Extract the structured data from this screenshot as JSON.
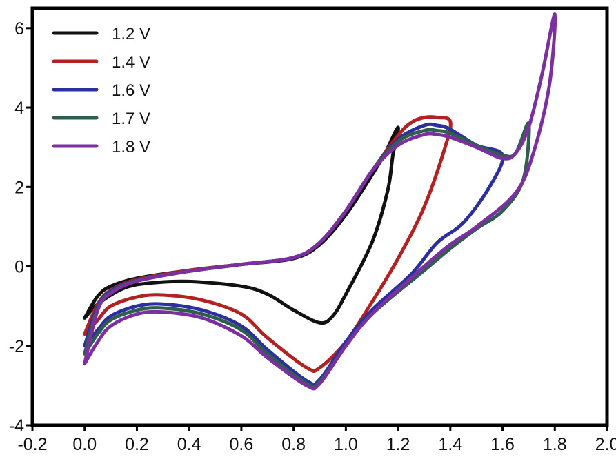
{
  "chart_data": {
    "type": "line",
    "title": "",
    "xlabel": "",
    "ylabel": "",
    "xlim": [
      -0.2,
      2.0
    ],
    "ylim": [
      -4,
      6.5
    ],
    "xticks": [
      -0.2,
      0.0,
      0.2,
      0.4,
      0.6,
      0.8,
      1.0,
      1.2,
      1.4,
      1.6,
      1.8,
      2.0
    ],
    "xtick_labels": [
      "-0.2",
      "0.0",
      "0.2",
      "0.4",
      "0.6",
      "0.8",
      "1.0",
      "1.2",
      "1.4",
      "1.6",
      "1.8",
      "2.0"
    ],
    "yticks": [
      -4,
      -2,
      0,
      2,
      4,
      6
    ],
    "ytick_labels": [
      "-4",
      "-2",
      "0",
      "2",
      "4",
      "6"
    ],
    "grid": false,
    "legend_position": "top-left",
    "series": [
      {
        "name": "1.2 V",
        "color": "#111111",
        "points": [
          [
            0.0,
            -1.3
          ],
          [
            0.05,
            -0.75
          ],
          [
            0.1,
            -0.5
          ],
          [
            0.2,
            -0.3
          ],
          [
            0.4,
            -0.1
          ],
          [
            0.6,
            0.05
          ],
          [
            0.8,
            0.2
          ],
          [
            0.9,
            0.55
          ],
          [
            1.0,
            1.3
          ],
          [
            1.1,
            2.3
          ],
          [
            1.15,
            2.85
          ],
          [
            1.2,
            3.5
          ],
          [
            1.18,
            2.8
          ],
          [
            1.16,
            1.9
          ],
          [
            1.1,
            0.6
          ],
          [
            1.0,
            -0.7
          ],
          [
            0.95,
            -1.25
          ],
          [
            0.9,
            -1.42
          ],
          [
            0.8,
            -1.1
          ],
          [
            0.7,
            -0.7
          ],
          [
            0.6,
            -0.5
          ],
          [
            0.4,
            -0.38
          ],
          [
            0.25,
            -0.42
          ],
          [
            0.15,
            -0.55
          ],
          [
            0.05,
            -0.95
          ],
          [
            0.0,
            -1.3
          ]
        ]
      },
      {
        "name": "1.4 V",
        "color": "#b22222",
        "points": [
          [
            0.0,
            -1.7
          ],
          [
            0.05,
            -0.95
          ],
          [
            0.1,
            -0.6
          ],
          [
            0.2,
            -0.33
          ],
          [
            0.4,
            -0.1
          ],
          [
            0.6,
            0.05
          ],
          [
            0.8,
            0.22
          ],
          [
            0.9,
            0.6
          ],
          [
            1.0,
            1.4
          ],
          [
            1.1,
            2.4
          ],
          [
            1.2,
            3.3
          ],
          [
            1.25,
            3.62
          ],
          [
            1.3,
            3.75
          ],
          [
            1.35,
            3.75
          ],
          [
            1.4,
            3.65
          ],
          [
            1.38,
            3.0
          ],
          [
            1.3,
            1.5
          ],
          [
            1.2,
            0.2
          ],
          [
            1.1,
            -0.9
          ],
          [
            1.0,
            -1.9
          ],
          [
            0.9,
            -2.55
          ],
          [
            0.85,
            -2.55
          ],
          [
            0.7,
            -1.8
          ],
          [
            0.6,
            -1.2
          ],
          [
            0.45,
            -0.85
          ],
          [
            0.3,
            -0.72
          ],
          [
            0.2,
            -0.77
          ],
          [
            0.1,
            -1.0
          ],
          [
            0.05,
            -1.35
          ],
          [
            0.0,
            -1.7
          ]
        ]
      },
      {
        "name": "1.6 V",
        "color": "#2b2fa0",
        "points": [
          [
            0.0,
            -2.0
          ],
          [
            0.05,
            -1.0
          ],
          [
            0.1,
            -0.62
          ],
          [
            0.2,
            -0.35
          ],
          [
            0.4,
            -0.12
          ],
          [
            0.6,
            0.05
          ],
          [
            0.8,
            0.22
          ],
          [
            0.9,
            0.6
          ],
          [
            1.0,
            1.4
          ],
          [
            1.1,
            2.4
          ],
          [
            1.2,
            3.2
          ],
          [
            1.3,
            3.55
          ],
          [
            1.35,
            3.55
          ],
          [
            1.4,
            3.45
          ],
          [
            1.5,
            3.05
          ],
          [
            1.6,
            2.8
          ],
          [
            1.55,
            2.0
          ],
          [
            1.45,
            1.1
          ],
          [
            1.35,
            0.6
          ],
          [
            1.25,
            -0.2
          ],
          [
            1.1,
            -1.1
          ],
          [
            1.0,
            -1.9
          ],
          [
            0.9,
            -2.85
          ],
          [
            0.85,
            -2.88
          ],
          [
            0.7,
            -2.1
          ],
          [
            0.6,
            -1.5
          ],
          [
            0.45,
            -1.1
          ],
          [
            0.3,
            -0.95
          ],
          [
            0.2,
            -1.0
          ],
          [
            0.1,
            -1.25
          ],
          [
            0.05,
            -1.6
          ],
          [
            0.0,
            -2.0
          ]
        ]
      },
      {
        "name": "1.7 V",
        "color": "#2e5e4e",
        "points": [
          [
            0.0,
            -2.2
          ],
          [
            0.05,
            -1.05
          ],
          [
            0.1,
            -0.65
          ],
          [
            0.2,
            -0.36
          ],
          [
            0.4,
            -0.12
          ],
          [
            0.6,
            0.05
          ],
          [
            0.8,
            0.22
          ],
          [
            0.9,
            0.6
          ],
          [
            1.0,
            1.4
          ],
          [
            1.1,
            2.4
          ],
          [
            1.2,
            3.15
          ],
          [
            1.3,
            3.42
          ],
          [
            1.35,
            3.42
          ],
          [
            1.4,
            3.35
          ],
          [
            1.5,
            3.05
          ],
          [
            1.6,
            2.8
          ],
          [
            1.65,
            2.85
          ],
          [
            1.7,
            3.6
          ],
          [
            1.68,
            2.2
          ],
          [
            1.6,
            1.4
          ],
          [
            1.5,
            0.95
          ],
          [
            1.4,
            0.45
          ],
          [
            1.3,
            -0.1
          ],
          [
            1.1,
            -1.2
          ],
          [
            1.0,
            -2.0
          ],
          [
            0.9,
            -2.9
          ],
          [
            0.85,
            -2.95
          ],
          [
            0.7,
            -2.2
          ],
          [
            0.6,
            -1.6
          ],
          [
            0.45,
            -1.2
          ],
          [
            0.3,
            -1.05
          ],
          [
            0.2,
            -1.1
          ],
          [
            0.1,
            -1.35
          ],
          [
            0.05,
            -1.7
          ],
          [
            0.0,
            -2.2
          ]
        ]
      },
      {
        "name": "1.8 V",
        "color": "#7b2fa0",
        "points": [
          [
            0.0,
            -2.45
          ],
          [
            0.05,
            -1.1
          ],
          [
            0.1,
            -0.68
          ],
          [
            0.2,
            -0.37
          ],
          [
            0.4,
            -0.12
          ],
          [
            0.6,
            0.05
          ],
          [
            0.8,
            0.22
          ],
          [
            0.9,
            0.6
          ],
          [
            1.0,
            1.4
          ],
          [
            1.1,
            2.4
          ],
          [
            1.2,
            3.05
          ],
          [
            1.3,
            3.32
          ],
          [
            1.35,
            3.32
          ],
          [
            1.4,
            3.25
          ],
          [
            1.5,
            3.0
          ],
          [
            1.6,
            2.72
          ],
          [
            1.65,
            2.85
          ],
          [
            1.7,
            3.5
          ],
          [
            1.75,
            4.8
          ],
          [
            1.8,
            6.35
          ],
          [
            1.78,
            4.6
          ],
          [
            1.72,
            2.9
          ],
          [
            1.65,
            1.85
          ],
          [
            1.5,
            1.0
          ],
          [
            1.4,
            0.55
          ],
          [
            1.3,
            0.0
          ],
          [
            1.1,
            -1.2
          ],
          [
            1.0,
            -2.0
          ],
          [
            0.9,
            -2.95
          ],
          [
            0.85,
            -3.0
          ],
          [
            0.7,
            -2.3
          ],
          [
            0.6,
            -1.75
          ],
          [
            0.45,
            -1.3
          ],
          [
            0.3,
            -1.15
          ],
          [
            0.2,
            -1.2
          ],
          [
            0.1,
            -1.5
          ],
          [
            0.05,
            -1.9
          ],
          [
            0.0,
            -2.45
          ]
        ]
      }
    ]
  }
}
